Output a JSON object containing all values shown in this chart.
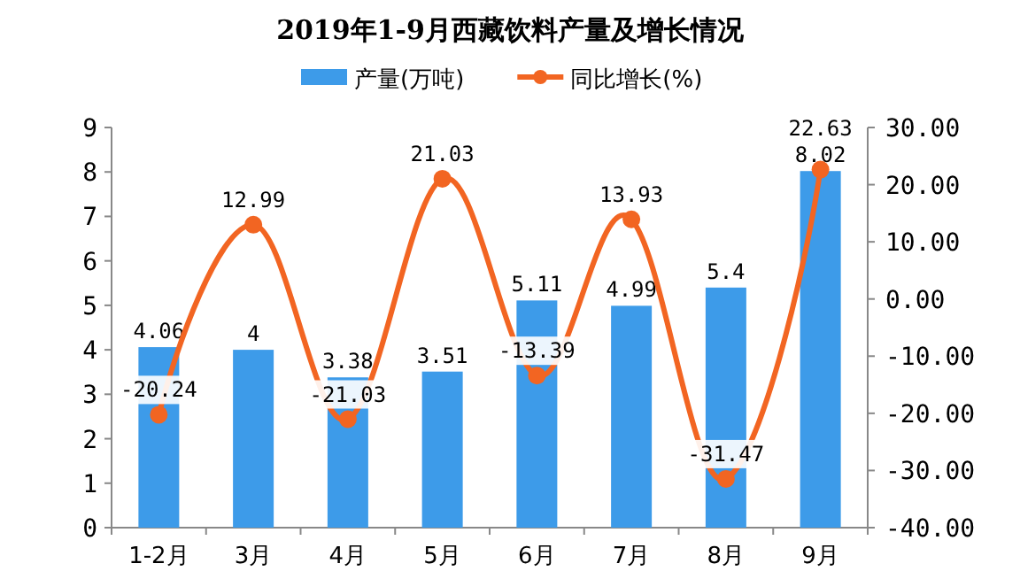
{
  "chart_data": {
    "type": "bar",
    "title": "2019年1-9月西藏饮料产量及增长情况",
    "categories": [
      "1-2月",
      "3月",
      "4月",
      "5月",
      "6月",
      "7月",
      "8月",
      "9月"
    ],
    "series": [
      {
        "name": "产量(万吨)",
        "color": "#3d9be9",
        "values": [
          4.06,
          4,
          3.38,
          3.51,
          5.11,
          4.99,
          5.4,
          8.02
        ]
      },
      {
        "name": "同比增长(%)",
        "type": "line",
        "axis": "y2",
        "color": "#f26522",
        "marker": "circle",
        "values": [
          -20.24,
          12.99,
          -21.03,
          21.03,
          -13.39,
          13.93,
          -31.47,
          22.63
        ]
      }
    ],
    "ylim": [
      0,
      9
    ],
    "yticks": [
      0,
      1,
      2,
      3,
      4,
      5,
      6,
      7,
      8,
      9
    ],
    "y2lim": [
      -40,
      30
    ],
    "y2ticks": [
      {
        "value": -40,
        "label": "-40.00"
      },
      {
        "value": -30,
        "label": "-30.00"
      },
      {
        "value": -20,
        "label": "-20.00"
      },
      {
        "value": -10,
        "label": "-10.00"
      },
      {
        "value": 0,
        "label": "0.00"
      },
      {
        "value": 10,
        "label": "10.00"
      },
      {
        "value": 20,
        "label": "20.00"
      },
      {
        "value": 30,
        "label": "30.00"
      }
    ],
    "data_labels": true,
    "grid": false,
    "legend": "top"
  }
}
